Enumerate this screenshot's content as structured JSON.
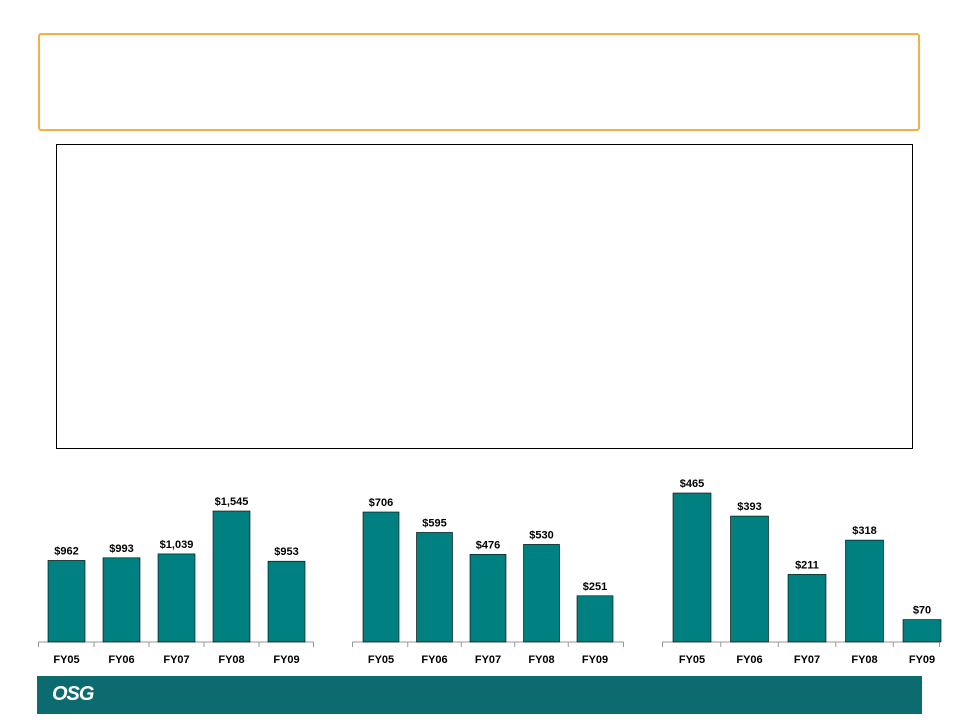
{
  "logo_text": "OSG",
  "colors": {
    "bar": "#008080",
    "footer": "#0b6b6f",
    "title_border": "#f5b041"
  },
  "chart_data": [
    {
      "type": "bar",
      "categories": [
        "FY05",
        "FY06",
        "FY07",
        "FY08",
        "FY09"
      ],
      "values": [
        962,
        993,
        1039,
        1545,
        953
      ],
      "labels": [
        "$962",
        "$993",
        "$1,039",
        "$1,545",
        "$953"
      ],
      "ylim": [
        0,
        1545
      ]
    },
    {
      "type": "bar",
      "categories": [
        "FY05",
        "FY06",
        "FY07",
        "FY08",
        "FY09"
      ],
      "values": [
        706,
        595,
        476,
        530,
        251
      ],
      "labels": [
        "$706",
        "$595",
        "$476",
        "$530",
        "$251"
      ],
      "ylim": [
        0,
        706
      ]
    },
    {
      "type": "bar",
      "categories": [
        "FY05",
        "FY06",
        "FY07",
        "FY08",
        "FY09"
      ],
      "values": [
        465,
        393,
        211,
        318,
        70
      ],
      "labels": [
        "$465",
        "$393",
        "$211",
        "$318",
        "$70"
      ],
      "ylim": [
        0,
        465
      ]
    }
  ]
}
